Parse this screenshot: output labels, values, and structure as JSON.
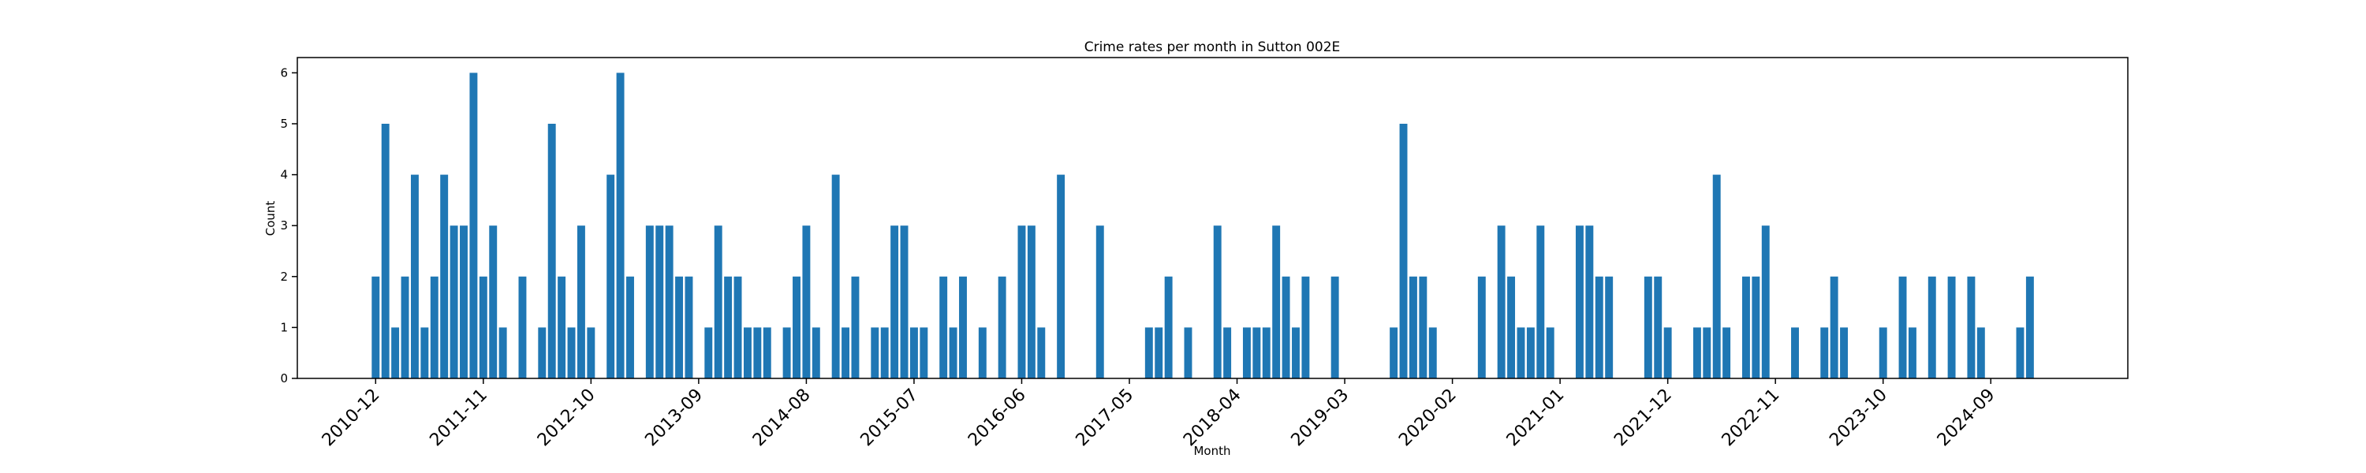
{
  "chart_data": {
    "type": "bar",
    "title": "Crime rates per month in Sutton 002E",
    "xlabel": "Month",
    "ylabel": "Count",
    "color": "#1f77b4",
    "x": [
      "2010-12",
      "2011-01",
      "2011-02",
      "2011-03",
      "2011-04",
      "2011-05",
      "2011-06",
      "2011-07",
      "2011-08",
      "2011-09",
      "2011-10",
      "2011-11",
      "2011-12",
      "2012-01",
      "2012-03",
      "2012-05",
      "2012-06",
      "2012-07",
      "2012-08",
      "2012-09",
      "2012-10",
      "2012-12",
      "2013-01",
      "2013-02",
      "2013-04",
      "2013-05",
      "2013-06",
      "2013-07",
      "2013-08",
      "2013-10",
      "2013-11",
      "2013-12",
      "2014-01",
      "2014-02",
      "2014-03",
      "2014-04",
      "2014-06",
      "2014-07",
      "2014-08",
      "2014-09",
      "2014-11",
      "2014-12",
      "2015-01",
      "2015-03",
      "2015-04",
      "2015-05",
      "2015-06",
      "2015-07",
      "2015-08",
      "2015-10",
      "2015-11",
      "2015-12",
      "2016-02",
      "2016-04",
      "2016-06",
      "2016-07",
      "2016-08",
      "2016-10",
      "2017-02",
      "2017-07",
      "2017-08",
      "2017-09",
      "2017-11",
      "2018-02",
      "2018-03",
      "2018-05",
      "2018-06",
      "2018-07",
      "2018-08",
      "2018-09",
      "2018-10",
      "2018-11",
      "2019-02",
      "2019-08",
      "2019-09",
      "2019-10",
      "2019-11",
      "2019-12",
      "2020-05",
      "2020-07",
      "2020-08",
      "2020-09",
      "2020-10",
      "2020-11",
      "2020-12",
      "2021-03",
      "2021-04",
      "2021-05",
      "2021-06",
      "2021-10",
      "2021-11",
      "2021-12",
      "2022-03",
      "2022-04",
      "2022-05",
      "2022-06",
      "2022-08",
      "2022-09",
      "2022-10",
      "2023-01",
      "2023-04",
      "2023-05",
      "2023-06",
      "2023-10",
      "2023-12",
      "2024-01",
      "2024-03",
      "2024-05",
      "2024-07",
      "2024-08",
      "2024-12",
      "2025-01"
    ],
    "values": [
      2,
      5,
      1,
      2,
      4,
      1,
      2,
      4,
      3,
      3,
      6,
      2,
      3,
      1,
      2,
      1,
      5,
      2,
      1,
      3,
      1,
      4,
      6,
      2,
      3,
      3,
      3,
      2,
      2,
      1,
      3,
      2,
      2,
      1,
      1,
      1,
      1,
      2,
      3,
      1,
      4,
      1,
      2,
      1,
      1,
      3,
      3,
      1,
      1,
      2,
      1,
      2,
      1,
      2,
      3,
      3,
      1,
      4,
      3,
      1,
      1,
      2,
      1,
      3,
      1,
      1,
      1,
      1,
      3,
      2,
      1,
      2,
      2,
      1,
      5,
      2,
      2,
      1,
      2,
      3,
      2,
      1,
      1,
      3,
      1,
      3,
      3,
      2,
      2,
      2,
      2,
      1,
      1,
      1,
      4,
      1,
      2,
      2,
      3,
      1,
      1,
      2,
      1,
      1,
      2,
      1,
      2,
      2,
      2,
      1,
      1,
      2
    ],
    "xlim": [
      "2010-04",
      "2025-11"
    ],
    "xticks": [
      "2010-12",
      "2011-11",
      "2012-10",
      "2013-09",
      "2014-08",
      "2015-07",
      "2016-06",
      "2017-05",
      "2018-04",
      "2019-03",
      "2020-02",
      "2021-01",
      "2021-12",
      "2022-11",
      "2023-10",
      "2024-09"
    ],
    "ylim": [
      0,
      6.3
    ],
    "yticks": [
      0,
      1,
      2,
      3,
      4,
      5,
      6
    ]
  }
}
